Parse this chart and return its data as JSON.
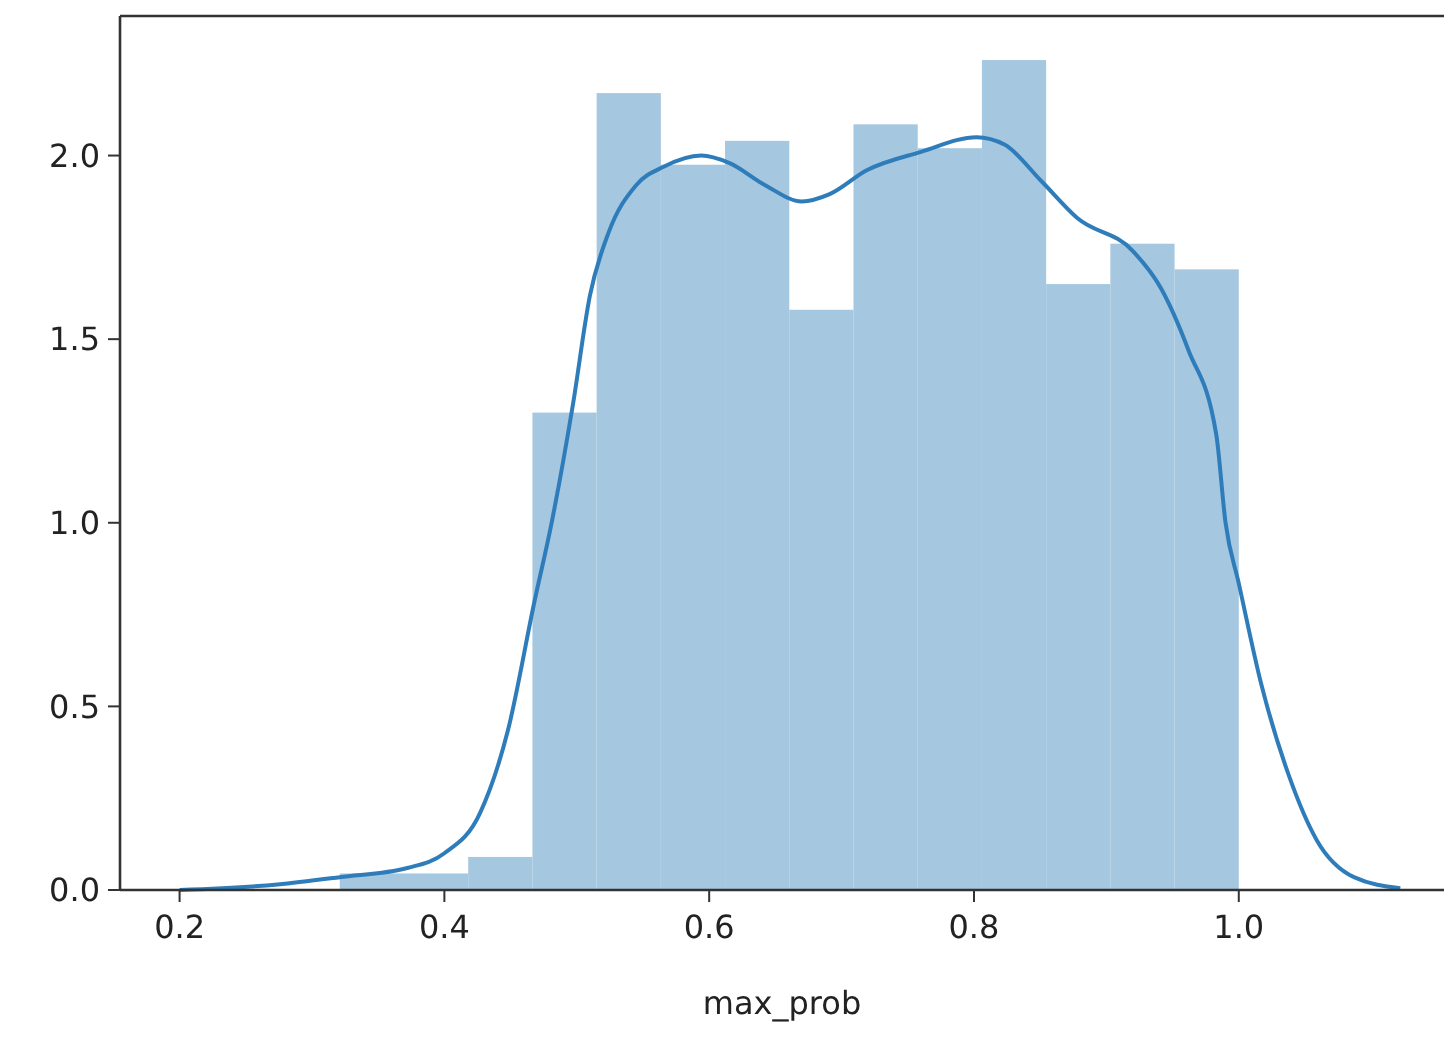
{
  "chart_data": {
    "type": "histogram",
    "xlabel": "max_prob",
    "bins": [
      0.321,
      0.3695,
      0.418,
      0.4665,
      0.515,
      0.5635,
      0.612,
      0.6605,
      0.709,
      0.7575,
      0.806,
      0.8545,
      0.903,
      0.9515,
      1.0
    ],
    "values": [
      0.045,
      0.045,
      0.09,
      1.3,
      2.17,
      1.975,
      2.04,
      1.58,
      2.085,
      2.02,
      2.26,
      1.65,
      1.76,
      1.69
    ],
    "color": "#a5c7df",
    "series": [
      {
        "type": "line",
        "color": "#2e7dba",
        "x": [
          0.2,
          0.274,
          0.321,
          0.372,
          0.4,
          0.427,
          0.448,
          0.468,
          0.481,
          0.497,
          0.51,
          0.524,
          0.545,
          0.566,
          0.594,
          0.615,
          0.642,
          0.67,
          0.691,
          0.719,
          0.76,
          0.802,
          0.823,
          0.851,
          0.878,
          0.92,
          0.941,
          0.962,
          0.983,
          0.99,
          1.0,
          1.017,
          1.038,
          1.059,
          1.087,
          1.122
        ],
        "values": [
          0,
          0.015,
          0.035,
          0.06,
          0.1,
          0.21,
          0.435,
          0.785,
          1.0,
          1.32,
          1.62,
          1.79,
          1.92,
          1.97,
          2.0,
          1.98,
          1.92,
          1.875,
          1.895,
          1.96,
          2.01,
          2.05,
          2.03,
          1.93,
          1.83,
          1.74,
          1.64,
          1.47,
          1.24,
          1.0,
          0.835,
          0.56,
          0.31,
          0.135,
          0.035,
          0.005
        ]
      }
    ],
    "xlim": [
      0.155,
      1.155
    ],
    "xticks": [
      {
        "value": 0.2,
        "label": "0.2"
      },
      {
        "value": 0.4,
        "label": "0.4"
      },
      {
        "value": 0.6,
        "label": "0.6"
      },
      {
        "value": 0.8,
        "label": "0.8"
      },
      {
        "value": 1.0,
        "label": "1.0"
      }
    ],
    "ylim": [
      0,
      2.38
    ],
    "yticks": [
      {
        "value": 0,
        "label": "0.0"
      },
      {
        "value": 0.5,
        "label": "0.5"
      },
      {
        "value": 1.0,
        "label": "1.0"
      },
      {
        "value": 1.5,
        "label": "1.5"
      },
      {
        "value": 2.0,
        "label": "2.0"
      }
    ]
  }
}
